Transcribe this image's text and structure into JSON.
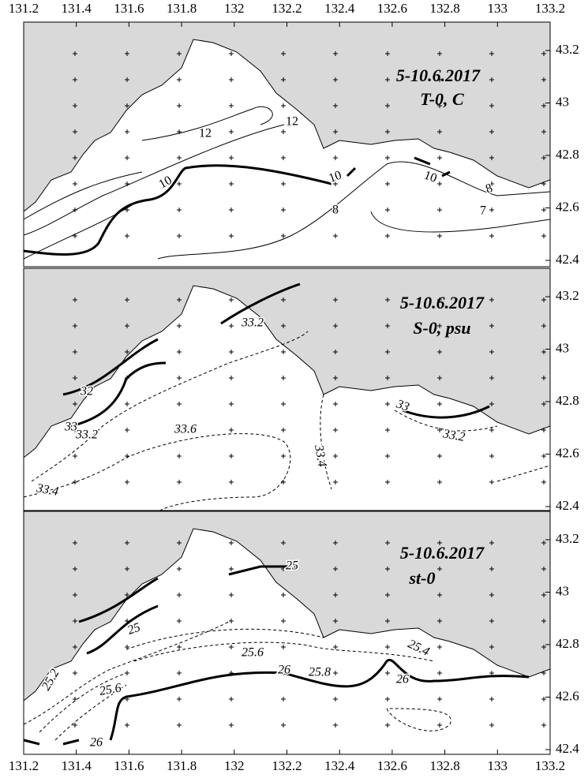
{
  "x_axis": {
    "ticks": [
      131.2,
      131.4,
      131.6,
      131.8,
      132,
      132.2,
      132.4,
      132.6,
      132.8,
      133,
      133.2
    ]
  },
  "panels": [
    {
      "title": "5-10.6.2017",
      "subtitle": "T-0, C",
      "yticks": [
        43.2,
        43,
        42.8,
        42.6,
        42.4
      ],
      "contour_labels": [
        12,
        12,
        10,
        10,
        10,
        8,
        8,
        7
      ]
    },
    {
      "title": "5-10.6.2017",
      "subtitle": "S-0, psu",
      "yticks": [
        43.2,
        43,
        42.8,
        42.6,
        42.4
      ],
      "contour_labels": [
        33.2,
        32,
        33,
        33.2,
        33.6,
        33.4,
        33,
        33.2,
        33.4
      ]
    },
    {
      "title": "5-10.6.2017",
      "subtitle": "st-0",
      "yticks": [
        43.2,
        43,
        42.8,
        42.6,
        42.4
      ],
      "contour_labels": [
        25,
        25,
        25.6,
        25.4,
        25.8,
        26,
        26,
        25.2,
        25.6,
        26
      ]
    }
  ]
}
